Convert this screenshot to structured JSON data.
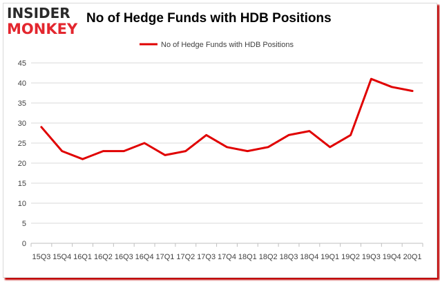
{
  "logo": {
    "line1": "INSIDER",
    "line2": "MONKEY"
  },
  "chart_data": {
    "type": "line",
    "title": "No of Hedge Funds with HDB Positions",
    "xlabel": "",
    "ylabel": "",
    "categories": [
      "15Q3",
      "15Q4",
      "16Q1",
      "16Q2",
      "16Q3",
      "16Q4",
      "17Q1",
      "17Q2",
      "17Q3",
      "17Q4",
      "18Q1",
      "18Q2",
      "18Q3",
      "18Q4",
      "19Q1",
      "19Q2",
      "19Q3",
      "19Q4",
      "20Q1"
    ],
    "series": [
      {
        "name": "No of Hedge Funds with HDB Positions",
        "color": "#e00000",
        "values": [
          29,
          23,
          21,
          23,
          23,
          25,
          22,
          23,
          27,
          24,
          23,
          24,
          27,
          28,
          24,
          27,
          41,
          39,
          38
        ]
      }
    ],
    "ylim": [
      0,
      45
    ],
    "yticks": [
      0,
      5,
      10,
      15,
      20,
      25,
      30,
      35,
      40,
      45
    ],
    "grid": true,
    "legend": "top-center"
  }
}
